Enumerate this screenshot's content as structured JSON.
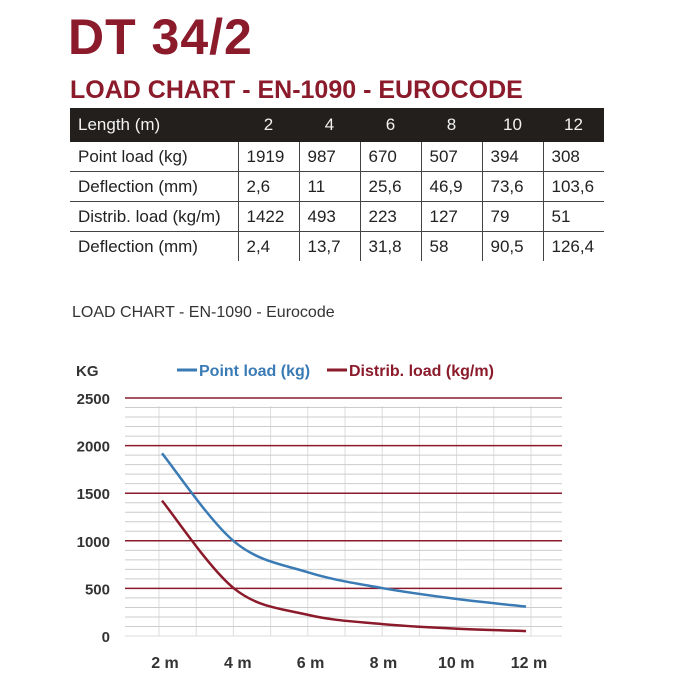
{
  "title": "DT 34/2",
  "subtitle": "LOAD CHART - EN-1090 - EUROCODE",
  "table": {
    "header": [
      "Length (m)",
      "2",
      "4",
      "6",
      "8",
      "10",
      "12"
    ],
    "rows": [
      [
        "Point load (kg)",
        "1919",
        "987",
        "670",
        "507",
        "394",
        "308"
      ],
      [
        "Deflection (mm)",
        "2,6",
        "11",
        "25,6",
        "46,9",
        "73,6",
        "103,6"
      ],
      [
        "Distrib. load (kg/m)",
        "1422",
        "493",
        "223",
        "127",
        "79",
        "51"
      ],
      [
        "Deflection (mm)",
        "2,4",
        "13,7",
        "31,8",
        "58",
        "90,5",
        "126,4"
      ]
    ]
  },
  "chart_caption": "LOAD CHART - EN-1090 - Eurocode",
  "chart_data": {
    "type": "line",
    "ylabel": "KG",
    "x": [
      2,
      4,
      6,
      8,
      10,
      12
    ],
    "x_tick_labels": [
      "2 m",
      "4 m",
      "6 m",
      "8 m",
      "10 m",
      "12 m"
    ],
    "y_ticks": [
      0,
      500,
      1000,
      1500,
      2000,
      2500
    ],
    "ylim": [
      0,
      2500
    ],
    "grid": true,
    "legend": "top",
    "series": [
      {
        "name": "Point load (kg)",
        "values": [
          1919,
          987,
          670,
          507,
          394,
          308
        ],
        "color": "#3a7bb5"
      },
      {
        "name": "Distrib. load (kg/m)",
        "values": [
          1422,
          493,
          223,
          127,
          79,
          51
        ],
        "color": "#8b1a2b"
      }
    ],
    "major_grid_color": "#8b1a2b"
  }
}
